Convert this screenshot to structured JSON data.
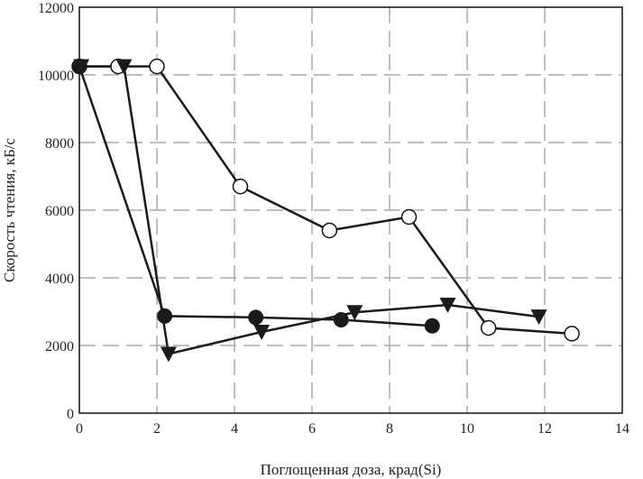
{
  "chart_data": {
    "type": "line",
    "title": "",
    "xlabel": "Поглощенная доза, крад(Si)",
    "ylabel": "Скорость чтения, кБ/с",
    "xlim": [
      0,
      14
    ],
    "ylim": [
      0,
      12000
    ],
    "xticks": [
      "0",
      "2",
      "4",
      "6",
      "8",
      "10",
      "12",
      "14"
    ],
    "yticks": [
      "0",
      "2000",
      "4000",
      "6000",
      "8000",
      "10000",
      "12000"
    ],
    "grid": true,
    "legend": "none",
    "series": [
      {
        "name": "open-circles",
        "marker": "open-circle",
        "x": [
          0,
          1.0,
          2.0,
          4.15,
          6.45,
          8.5,
          10.55,
          12.7
        ],
        "y": [
          10250,
          10250,
          10250,
          6700,
          5400,
          5800,
          2520,
          2350
        ]
      },
      {
        "name": "triangles",
        "marker": "triangle-down",
        "x": [
          0.05,
          1.15,
          2.3,
          4.7,
          7.1,
          9.5,
          11.85
        ],
        "y": [
          10250,
          10250,
          1750,
          2400,
          2980,
          3200,
          2850
        ]
      },
      {
        "name": "filled-circles",
        "marker": "filled-circle",
        "x": [
          0,
          2.2,
          4.55,
          6.75,
          9.1
        ],
        "y": [
          10250,
          2870,
          2830,
          2760,
          2580
        ]
      }
    ]
  }
}
